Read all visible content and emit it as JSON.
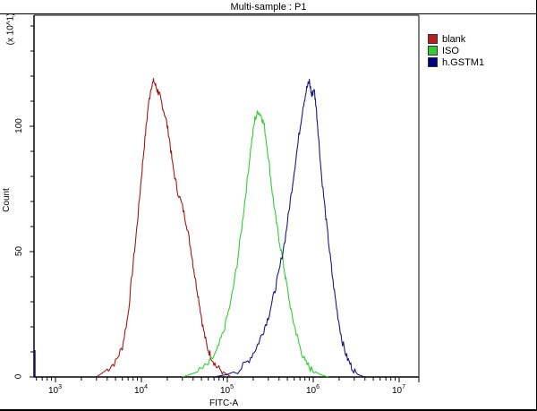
{
  "chart_data": {
    "type": "line",
    "title": "Multi-sample : P1",
    "xlabel": "FITC-A",
    "ylabel": "Count",
    "y_scale_note": "(x 10^1)",
    "x_scale": "log",
    "xlim": [
      562,
      12000000
    ],
    "ylim": [
      0,
      145
    ],
    "x_ticks": [
      {
        "base": "10",
        "exp": "3",
        "value": 1000
      },
      {
        "base": "10",
        "exp": "4",
        "value": 10000
      },
      {
        "base": "10",
        "exp": "5",
        "value": 100000
      },
      {
        "base": "10",
        "exp": "6",
        "value": 1000000
      },
      {
        "base": "10",
        "exp": "7",
        "value": 10000000
      }
    ],
    "y_ticks": [
      "0",
      "50",
      "100"
    ],
    "grid": false,
    "legend_position": "right-top",
    "series": [
      {
        "name": "blank",
        "color": "#b22222",
        "line_color": "#a01818",
        "points": [
          [
            3000,
            0
          ],
          [
            4000,
            3
          ],
          [
            5000,
            6
          ],
          [
            6000,
            12
          ],
          [
            7000,
            25
          ],
          [
            8000,
            45
          ],
          [
            9000,
            62
          ],
          [
            10000,
            80
          ],
          [
            11000,
            95
          ],
          [
            12000,
            108
          ],
          [
            13000,
            116
          ],
          [
            14000,
            118
          ],
          [
            15000,
            115
          ],
          [
            16000,
            113
          ],
          [
            17000,
            110
          ],
          [
            19000,
            104
          ],
          [
            21000,
            96
          ],
          [
            23000,
            85
          ],
          [
            26000,
            75
          ],
          [
            30000,
            68
          ],
          [
            34000,
            60
          ],
          [
            38000,
            50
          ],
          [
            42000,
            40
          ],
          [
            47000,
            30
          ],
          [
            52000,
            20
          ],
          [
            58000,
            12
          ],
          [
            65000,
            8
          ],
          [
            75000,
            4
          ],
          [
            90000,
            2
          ],
          [
            110000,
            0
          ]
        ]
      },
      {
        "name": "ISO",
        "color": "#33cc33",
        "line_color": "#33cc33",
        "points": [
          [
            30000,
            0
          ],
          [
            45000,
            2
          ],
          [
            60000,
            5
          ],
          [
            75000,
            10
          ],
          [
            90000,
            18
          ],
          [
            110000,
            30
          ],
          [
            130000,
            45
          ],
          [
            150000,
            62
          ],
          [
            170000,
            78
          ],
          [
            190000,
            93
          ],
          [
            210000,
            103
          ],
          [
            230000,
            106
          ],
          [
            250000,
            104
          ],
          [
            270000,
            100
          ],
          [
            300000,
            88
          ],
          [
            330000,
            75
          ],
          [
            360000,
            65
          ],
          [
            400000,
            55
          ],
          [
            450000,
            45
          ],
          [
            500000,
            35
          ],
          [
            560000,
            25
          ],
          [
            630000,
            18
          ],
          [
            700000,
            12
          ],
          [
            800000,
            6
          ],
          [
            950000,
            3
          ],
          [
            1200000,
            1
          ],
          [
            1500000,
            0
          ]
        ]
      },
      {
        "name": "h.GSTM1",
        "color": "#000080",
        "line_color": "#1a1a7a",
        "points": [
          [
            70000,
            0
          ],
          [
            100000,
            1
          ],
          [
            140000,
            3
          ],
          [
            180000,
            7
          ],
          [
            220000,
            12
          ],
          [
            260000,
            18
          ],
          [
            300000,
            24
          ],
          [
            350000,
            33
          ],
          [
            400000,
            42
          ],
          [
            470000,
            55
          ],
          [
            530000,
            68
          ],
          [
            600000,
            82
          ],
          [
            680000,
            96
          ],
          [
            760000,
            108
          ],
          [
            840000,
            115
          ],
          [
            900000,
            118
          ],
          [
            960000,
            112
          ],
          [
            1020000,
            115
          ],
          [
            1080000,
            108
          ],
          [
            1150000,
            96
          ],
          [
            1250000,
            80
          ],
          [
            1400000,
            64
          ],
          [
            1550000,
            50
          ],
          [
            1700000,
            38
          ],
          [
            1900000,
            26
          ],
          [
            2150000,
            15
          ],
          [
            2450000,
            8
          ],
          [
            2800000,
            4
          ],
          [
            3300000,
            1
          ],
          [
            4000000,
            0
          ]
        ]
      }
    ]
  },
  "legend": {
    "items": [
      {
        "label": "blank",
        "color": "#b22222"
      },
      {
        "label": "ISO",
        "color": "#33cc33"
      },
      {
        "label": "h.GSTM1",
        "color": "#000080"
      }
    ]
  }
}
